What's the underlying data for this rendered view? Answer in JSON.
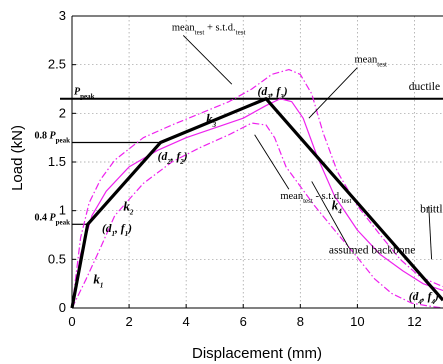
{
  "chart_data": {
    "type": "line",
    "xlabel": "Displacement (mm)",
    "ylabel": "Load (kN)",
    "xlim": [
      0,
      13
    ],
    "ylim": [
      0,
      3
    ],
    "xticks": [
      0,
      2,
      4,
      6,
      8,
      10,
      12
    ],
    "yticks": [
      0,
      0.5,
      1,
      1.5,
      2,
      2.5,
      3
    ],
    "ytick_labels": [
      "0",
      "0.5",
      "1",
      "1.5",
      "2",
      "2.5",
      "3"
    ],
    "grid": "dotted",
    "colors": {
      "backbone": "#000000",
      "test": "#ee22ee"
    },
    "series": [
      {
        "name": "mean_test",
        "style": "solid",
        "x": [
          0,
          0.3,
          0.7,
          1.2,
          2,
          3,
          4,
          5,
          6,
          6.8,
          7.3,
          7.7,
          8.1,
          8.6,
          9.2,
          10,
          10.8,
          11.6,
          12.3,
          13
        ],
        "y": [
          0,
          0.55,
          0.95,
          1.2,
          1.45,
          1.62,
          1.75,
          1.85,
          1.95,
          2.08,
          2.15,
          2.12,
          1.95,
          1.55,
          1.15,
          0.8,
          0.55,
          0.38,
          0.25,
          0.18
        ]
      },
      {
        "name": "mean_test + s.t.d_test",
        "style": "dashdot",
        "x": [
          0,
          0.3,
          0.6,
          1,
          1.5,
          2.5,
          3.5,
          4.5,
          5.5,
          6.3,
          7,
          7.6,
          8,
          8.4,
          8.8,
          9.3,
          10,
          10.8,
          11.5,
          12.2,
          13
        ],
        "y": [
          0,
          0.72,
          1.08,
          1.32,
          1.52,
          1.75,
          1.88,
          2.0,
          2.12,
          2.25,
          2.4,
          2.45,
          2.4,
          2.2,
          1.8,
          1.4,
          1.05,
          0.75,
          0.5,
          0.32,
          0.22
        ]
      },
      {
        "name": "mean_test - s.t.d_test",
        "style": "dashdot",
        "x": [
          0,
          0.5,
          1,
          1.5,
          2.5,
          3.5,
          4.5,
          5.5,
          6.3,
          6.8,
          7.1,
          7.5,
          8,
          8.5,
          9.2,
          10,
          10.6,
          11.2,
          11.9,
          12.5,
          13
        ],
        "y": [
          0,
          0.3,
          0.62,
          0.95,
          1.28,
          1.5,
          1.65,
          1.78,
          1.9,
          1.88,
          1.75,
          1.45,
          1.25,
          1.05,
          0.8,
          0.52,
          0.3,
          0.15,
          0.05,
          0.02,
          0
        ]
      },
      {
        "name": "assumed backbone",
        "style": "bold",
        "x": [
          0,
          0.55,
          3.1,
          6.8,
          13
        ],
        "y": [
          0,
          0.86,
          1.7,
          2.15,
          0.08
        ]
      }
    ],
    "reference_lines": [
      {
        "label": "P_peak",
        "y": 2.15,
        "style": "full"
      },
      {
        "label": "0.8 P_peak",
        "y": 1.7,
        "x_end": 3.1
      },
      {
        "label": "0.4 P_peak",
        "y": 0.86,
        "x_end": 0.55
      }
    ],
    "annotations": [
      {
        "text": "ductile",
        "x": 11.8,
        "y": 2.24
      },
      {
        "text": "brittle",
        "x": 12.2,
        "y": 0.98
      },
      {
        "text": "assumed backbone",
        "x": 9.0,
        "y": 0.56
      },
      {
        "text": "mean_test + s.t.d_test",
        "x": 3.5,
        "y": 2.85
      },
      {
        "text": "mean_test",
        "x": 9.9,
        "y": 2.52
      },
      {
        "text": "mean_test - s.t.d_test",
        "x": 7.3,
        "y": 1.12
      },
      {
        "text": "(d1, f1)",
        "x": 1.05,
        "y": 0.78
      },
      {
        "text": "(d2, f2)",
        "x": 3.0,
        "y": 1.52
      },
      {
        "text": "(d3, f3)",
        "x": 6.5,
        "y": 2.19
      },
      {
        "text": "(d4, f4)",
        "x": 11.8,
        "y": 0.08
      },
      {
        "text": "k1",
        "x": 0.75,
        "y": 0.25
      },
      {
        "text": "k2",
        "x": 1.8,
        "y": 1.0
      },
      {
        "text": "k3",
        "x": 4.7,
        "y": 1.9
      },
      {
        "text": "k4",
        "x": 9.1,
        "y": 1.01
      }
    ]
  }
}
